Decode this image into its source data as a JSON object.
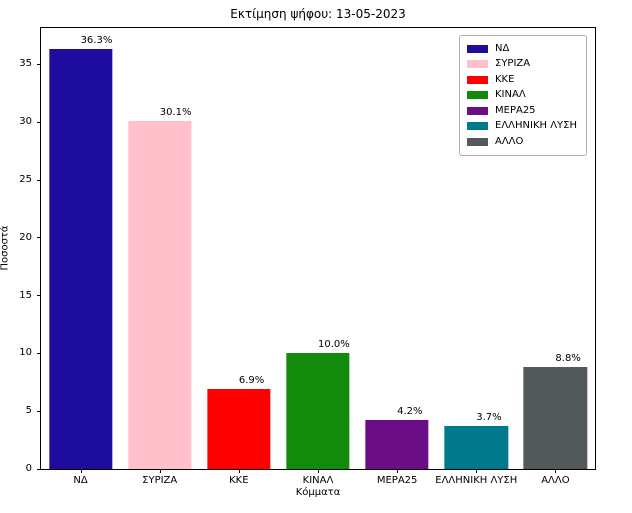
{
  "figure": {
    "title": "Εκτίμηση ψήφου: 13-05-2023",
    "xlabel": "Κόμματα",
    "ylabel": "Ποσοστά"
  },
  "chart_data": {
    "type": "bar",
    "title": "Εκτίμηση ψήφου: 13-05-2023",
    "xlabel": "Κόμματα",
    "ylabel": "Ποσοστά",
    "categories": [
      "ΝΔ",
      "ΣΥΡΙΖΑ",
      "ΚΚΕ",
      "ΚΙΝΑΛ",
      "ΜΕΡΑ25",
      "ΕΛΛΗΝΙΚΗ ΛΥΣΗ",
      "ΑΛΛΟ"
    ],
    "values": [
      36.3,
      30.1,
      6.9,
      10.0,
      4.2,
      3.7,
      8.8
    ],
    "value_labels": [
      "36.3%",
      "30.1%",
      "6.9%",
      "10.0%",
      "4.2%",
      "3.7%",
      "8.8%"
    ],
    "colors": [
      "#1e0c9e",
      "#ffc0cb",
      "#ff0000",
      "#128a0c",
      "#6b0e86",
      "#00798c",
      "#53585a"
    ],
    "yticks": [
      0,
      5,
      10,
      15,
      20,
      25,
      30,
      35
    ],
    "ylim": [
      0,
      38.15
    ],
    "grid": false,
    "legend": {
      "position": "upper right",
      "entries": [
        "ΝΔ",
        "ΣΥΡΙΖΑ",
        "ΚΚΕ",
        "ΚΙΝΑΛ",
        "ΜΕΡΑ25",
        "ΕΛΛΗΝΙΚΗ ΛΥΣΗ",
        "ΑΛΛΟ"
      ]
    }
  }
}
